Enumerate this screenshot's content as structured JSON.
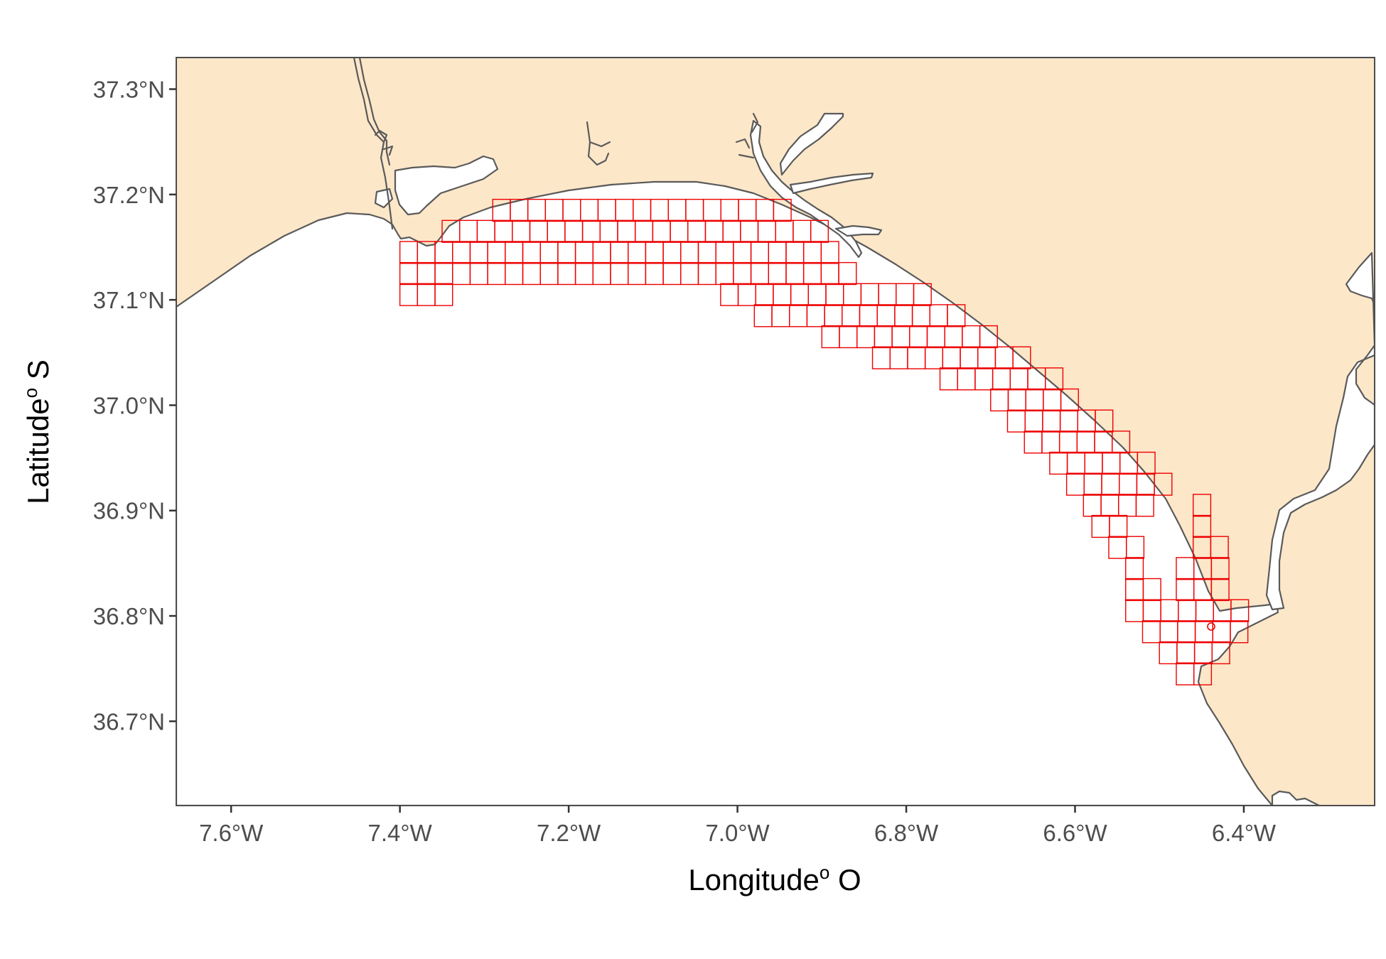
{
  "map": {
    "x_axis_title": "Longitude",
    "x_axis_title_sup": "o",
    "x_axis_title_suffix": " O",
    "y_axis_title": "Latitude",
    "y_axis_title_sup": "o",
    "y_axis_title_suffix": " S",
    "x_ticks": [
      "7.6°W",
      "7.4°W",
      "7.2°W",
      "7.0°W",
      "6.8°W",
      "6.6°W",
      "6.4°W"
    ],
    "y_ticks": [
      "37.3°N",
      "37.2°N",
      "37.1°N",
      "37.0°N",
      "36.9°N",
      "36.8°N",
      "36.7°N"
    ],
    "lon_range": [
      -7.665,
      -6.245
    ],
    "lat_range": [
      36.62,
      37.33
    ],
    "colors": {
      "land": "#fde7c9",
      "sea": "#ffffff",
      "coastline": "#5a5a5a",
      "grid": "#ee0000",
      "panel_border": "#4d4d4d"
    },
    "grid_cell_size_deg": 0.0208,
    "grid_rows": [
      {
        "lat": 37.185,
        "lon_from": -7.29,
        "lon_to": -6.94
      },
      {
        "lat": 37.165,
        "lon_from": -7.35,
        "lon_to": -6.9
      },
      {
        "lat": 37.145,
        "lon_from": -7.4,
        "lon_to": -6.88
      },
      {
        "lat": 37.125,
        "lon_from": -7.4,
        "lon_to": -6.86
      },
      {
        "lat": 37.105,
        "lon_from": -7.4,
        "lon_to": -7.34
      },
      {
        "lat": 37.105,
        "lon_from": -7.02,
        "lon_to": -6.79
      },
      {
        "lat": 37.085,
        "lon_from": -6.98,
        "lon_to": -6.75
      },
      {
        "lat": 37.065,
        "lon_from": -6.9,
        "lon_to": -6.71
      },
      {
        "lat": 37.045,
        "lon_from": -6.84,
        "lon_to": -6.66
      },
      {
        "lat": 37.025,
        "lon_from": -6.76,
        "lon_to": -6.63
      },
      {
        "lat": 37.005,
        "lon_from": -6.7,
        "lon_to": -6.6
      },
      {
        "lat": 36.985,
        "lon_from": -6.68,
        "lon_to": -6.57
      },
      {
        "lat": 36.965,
        "lon_from": -6.66,
        "lon_to": -6.54
      },
      {
        "lat": 36.945,
        "lon_from": -6.63,
        "lon_to": -6.51
      },
      {
        "lat": 36.925,
        "lon_from": -6.61,
        "lon_to": -6.5
      },
      {
        "lat": 36.905,
        "lon_from": -6.59,
        "lon_to": -6.52
      },
      {
        "lat": 36.885,
        "lon_from": -6.58,
        "lon_to": -6.54
      },
      {
        "lat": 36.905,
        "lon_from": -6.46,
        "lon_to": -6.45
      },
      {
        "lat": 36.885,
        "lon_from": -6.46,
        "lon_to": -6.44
      },
      {
        "lat": 36.865,
        "lon_from": -6.56,
        "lon_to": -6.53
      },
      {
        "lat": 36.865,
        "lon_from": -6.46,
        "lon_to": -6.43
      },
      {
        "lat": 36.845,
        "lon_from": -6.54,
        "lon_to": -6.52
      },
      {
        "lat": 36.845,
        "lon_from": -6.48,
        "lon_to": -6.42
      },
      {
        "lat": 36.825,
        "lon_from": -6.54,
        "lon_to": -6.5
      },
      {
        "lat": 36.825,
        "lon_from": -6.48,
        "lon_to": -6.42
      },
      {
        "lat": 36.805,
        "lon_from": -6.54,
        "lon_to": -6.41
      },
      {
        "lat": 36.785,
        "lon_from": -6.52,
        "lon_to": -6.41
      },
      {
        "lat": 36.765,
        "lon_from": -6.5,
        "lon_to": -6.42
      },
      {
        "lat": 36.745,
        "lon_from": -6.48,
        "lon_to": -6.44
      }
    ]
  }
}
